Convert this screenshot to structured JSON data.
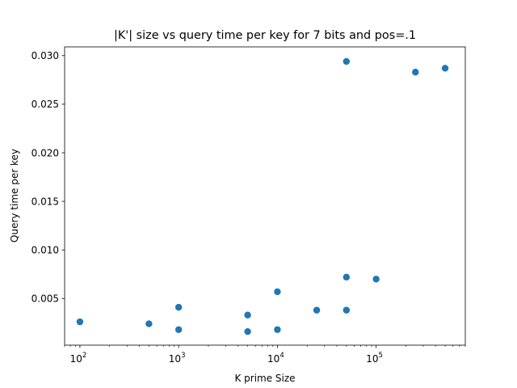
{
  "chart_data": {
    "type": "scatter",
    "title": "|K'| size vs query time per key for 7 bits and pos=.1",
    "xlabel": "K prime Size",
    "ylabel": "Query time per key",
    "xscale": "log",
    "xlim": [
      70,
      800000
    ],
    "ylim": [
      0.0002,
      0.0309
    ],
    "x_major_ticks": [
      {
        "value": 100,
        "base": "10",
        "exp": "2"
      },
      {
        "value": 1000,
        "base": "10",
        "exp": "3"
      },
      {
        "value": 10000,
        "base": "10",
        "exp": "4"
      },
      {
        "value": 100000,
        "base": "10",
        "exp": "5"
      }
    ],
    "y_ticks": [
      {
        "value": 0.005,
        "label": "0.005"
      },
      {
        "value": 0.01,
        "label": "0.010"
      },
      {
        "value": 0.015,
        "label": "0.015"
      },
      {
        "value": 0.02,
        "label": "0.020"
      },
      {
        "value": 0.025,
        "label": "0.025"
      },
      {
        "value": 0.03,
        "label": "0.030"
      }
    ],
    "grid": false,
    "marker_color": "#1f77b4",
    "series": [
      {
        "name": "query time",
        "points": [
          {
            "x": 100,
            "y": 0.0026
          },
          {
            "x": 500,
            "y": 0.0024
          },
          {
            "x": 1000,
            "y": 0.0041
          },
          {
            "x": 1000,
            "y": 0.0018
          },
          {
            "x": 5000,
            "y": 0.0033
          },
          {
            "x": 5000,
            "y": 0.0016
          },
          {
            "x": 10000,
            "y": 0.0057
          },
          {
            "x": 10000,
            "y": 0.0018
          },
          {
            "x": 25000,
            "y": 0.0038
          },
          {
            "x": 50000,
            "y": 0.0294
          },
          {
            "x": 50000,
            "y": 0.0072
          },
          {
            "x": 50000,
            "y": 0.0038
          },
          {
            "x": 100000,
            "y": 0.007
          },
          {
            "x": 250000,
            "y": 0.0283
          },
          {
            "x": 500000,
            "y": 0.0287
          }
        ]
      }
    ]
  }
}
